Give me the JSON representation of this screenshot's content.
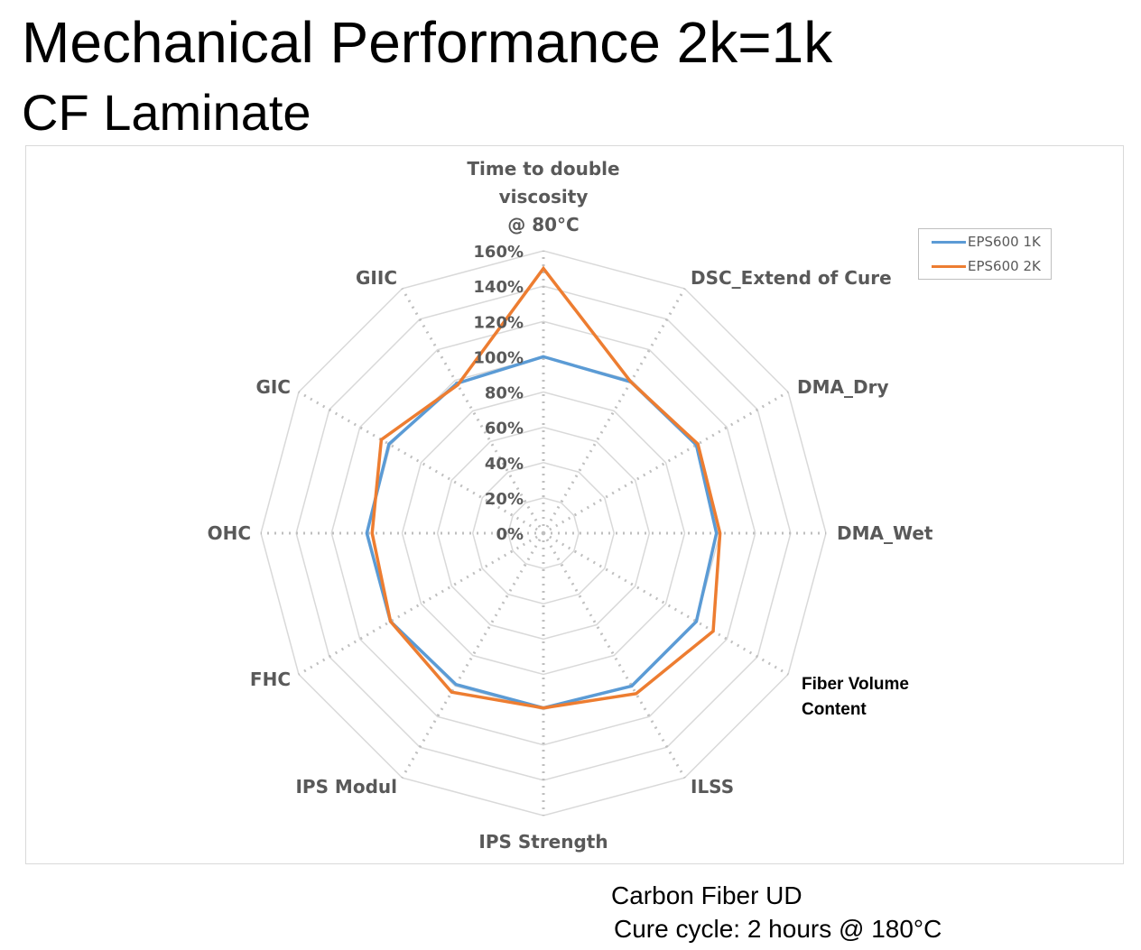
{
  "header": {
    "title": "Mechanical Performance 2k=1k",
    "subtitle": "CF Laminate"
  },
  "footnote": {
    "line1": "Carbon Fiber UD",
    "line2": "Cure cycle: 2 hours @ 180°C"
  },
  "colors": {
    "series_1k": "#5b9bd5",
    "series_2k": "#ed7d31",
    "grid": "#d9d9d9",
    "label": "#595959"
  },
  "chart_data": {
    "type": "radar",
    "title": "",
    "categories": [
      "Time to double viscosity @ 80°C",
      "DSC_Extend of Cure",
      "DMA_Dry",
      "DMA_Wet",
      "Fiber Volume Content",
      "ILSS",
      "IPS Strength",
      "IPS Modul",
      "FHC",
      "OHC",
      "GIC",
      "GIIC"
    ],
    "series": [
      {
        "name": "EPS600 1K",
        "values": [
          100,
          99,
          100,
          98,
          100,
          100,
          99,
          99,
          100,
          100,
          101,
          98
        ]
      },
      {
        "name": "EPS600 2K",
        "values": [
          150,
          99,
          101,
          100,
          111,
          105,
          99,
          104,
          100,
          97,
          106,
          97
        ]
      }
    ],
    "radial_ticks": [
      "0%",
      "20%",
      "40%",
      "60%",
      "80%",
      "100%",
      "120%",
      "140%",
      "160%"
    ],
    "rlim": [
      0,
      160
    ],
    "legend_position": "top-right",
    "grid": true
  },
  "legend": {
    "items": [
      {
        "label": "EPS600 1K"
      },
      {
        "label": "EPS600 2K"
      }
    ]
  }
}
